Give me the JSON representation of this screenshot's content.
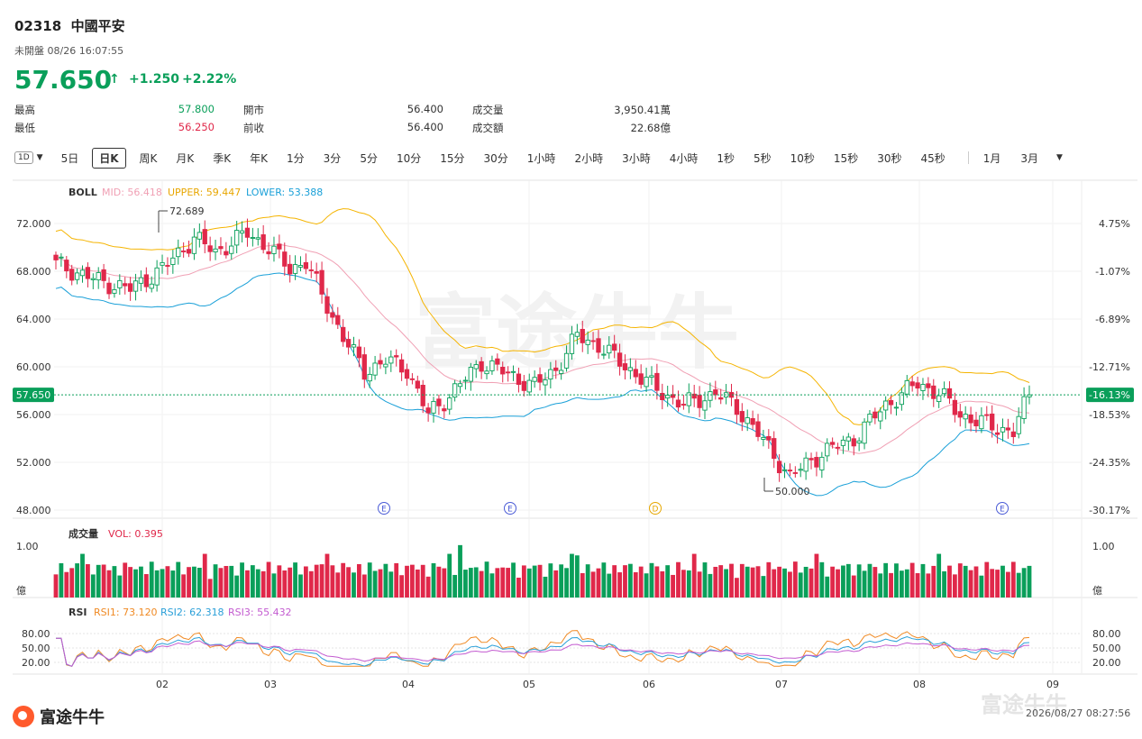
{
  "header": {
    "code": "02318",
    "name": "中國平安",
    "status": "未開盤 08/26 16:07:55",
    "price": "57.650",
    "change": "+1.250",
    "change_pct": "+2.22%",
    "price_color": "#0a9f5a"
  },
  "quote": {
    "high_label": "最高",
    "high": "57.800",
    "low_label": "最低",
    "low": "56.250",
    "open_label": "開市",
    "open": "56.400",
    "prev_label": "前收",
    "prev": "56.400",
    "vol_label": "成交量",
    "vol": "3,950.41萬",
    "amt_label": "成交額",
    "amt": "22.68億"
  },
  "periods": {
    "type_icon": "1D",
    "items": [
      "5日",
      "日K",
      "周K",
      "月K",
      "季K",
      "年K",
      "1分",
      "3分",
      "5分",
      "10分",
      "15分",
      "30分",
      "1小時",
      "2小時",
      "3小時",
      "4小時",
      "1秒",
      "5秒",
      "10秒",
      "15秒",
      "30秒",
      "45秒"
    ],
    "active": "日K",
    "range_items": [
      "1月",
      "3月"
    ]
  },
  "main_chart": {
    "indicator": "BOLL",
    "mid": "MID: 56.418",
    "upper": "UPPER: 59.447",
    "lower": "LOWER: 53.388",
    "y_ticks": [
      "72.000",
      "68.000",
      "64.000",
      "60.000",
      "56.000",
      "52.000",
      "48.000"
    ],
    "y_pct": [
      "4.75%",
      "-1.07%",
      "-6.89%",
      "-12.71%",
      "-18.53%",
      "-24.35%",
      "-30.17%"
    ],
    "current_price": "57.650",
    "current_pct": "-16.13%",
    "high_mark": "72.689",
    "low_mark": "50.000",
    "events": [
      "E",
      "E",
      "D",
      "E"
    ],
    "colors": {
      "up": "#0a9f5a",
      "down": "#e0284a",
      "upper": "#f5b400",
      "mid": "#f0a0b4",
      "lower": "#1aa0d8"
    }
  },
  "volume_chart": {
    "title": "成交量",
    "vol": "VOL: 0.395",
    "y_top": "1.00",
    "unit": "億"
  },
  "rsi_chart": {
    "title": "RSI",
    "rsi1": "RSI1: 73.120",
    "rsi2": "RSI2: 62.318",
    "rsi3": "RSI3: 55.432",
    "y_ticks": [
      "80.00",
      "50.00",
      "20.00"
    ],
    "colors": {
      "rsi1": "#f08a24",
      "rsi2": "#2a9fd8",
      "rsi3": "#c35bd0"
    }
  },
  "x_labels": [
    "02",
    "03",
    "04",
    "05",
    "06",
    "07",
    "08",
    "09"
  ],
  "footer": {
    "logo_text": "富途牛牛",
    "timestamp": "2026/08/27 08:27:56",
    "watermark": "富途牛牛"
  }
}
